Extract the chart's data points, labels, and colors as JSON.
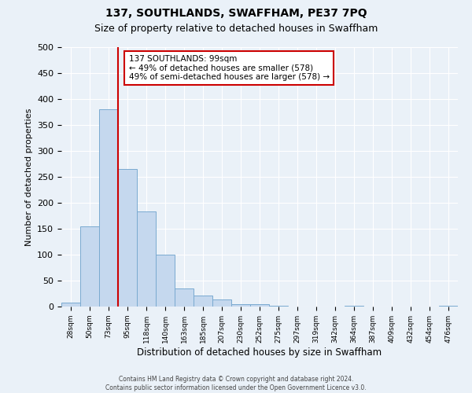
{
  "title": "137, SOUTHLANDS, SWAFFHAM, PE37 7PQ",
  "subtitle": "Size of property relative to detached houses in Swaffham",
  "xlabel": "Distribution of detached houses by size in Swaffham",
  "ylabel": "Number of detached properties",
  "bin_labels": [
    "28sqm",
    "50sqm",
    "73sqm",
    "95sqm",
    "118sqm",
    "140sqm",
    "163sqm",
    "185sqm",
    "207sqm",
    "230sqm",
    "252sqm",
    "275sqm",
    "297sqm",
    "319sqm",
    "342sqm",
    "364sqm",
    "387sqm",
    "409sqm",
    "432sqm",
    "454sqm",
    "476sqm"
  ],
  "bar_values": [
    7,
    155,
    380,
    265,
    183,
    100,
    35,
    21,
    13,
    5,
    5,
    1,
    0,
    0,
    0,
    2,
    0,
    0,
    0,
    0,
    2
  ],
  "bar_color": "#c5d8ee",
  "bar_edgecolor": "#7aaad0",
  "vline_color": "#cc0000",
  "vline_x_index": 3,
  "annotation_title": "137 SOUTHLANDS: 99sqm",
  "annotation_line1": "← 49% of detached houses are smaller (578)",
  "annotation_line2": "49% of semi-detached houses are larger (578) →",
  "annotation_box_edgecolor": "#cc0000",
  "ylim": [
    0,
    500
  ],
  "yticks": [
    0,
    50,
    100,
    150,
    200,
    250,
    300,
    350,
    400,
    450,
    500
  ],
  "footer_line1": "Contains HM Land Registry data © Crown copyright and database right 2024.",
  "footer_line2": "Contains public sector information licensed under the Open Government Licence v3.0.",
  "bg_color": "#eaf1f8",
  "plot_bg_color": "#eaf1f8",
  "title_fontsize": 10,
  "subtitle_fontsize": 9
}
